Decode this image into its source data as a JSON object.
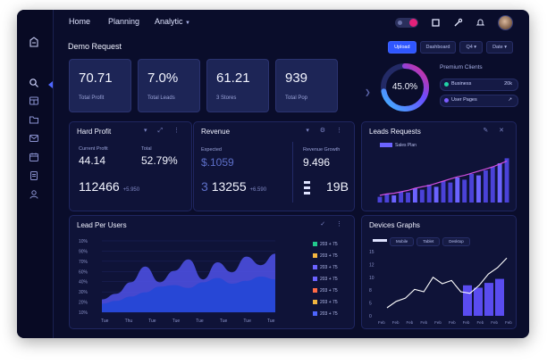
{
  "nav": {
    "items": [
      "Home",
      "Planning",
      "Analytic"
    ]
  },
  "page": {
    "title": "Demo Request"
  },
  "filters": [
    "Upload",
    "Dashboard",
    "Q4 ▾",
    "Date ▾"
  ],
  "kpis": [
    {
      "value": "70.71",
      "label": "Total Profit"
    },
    {
      "value": "7.0%",
      "label": "Total Leads"
    },
    {
      "value": "61.21",
      "label": "3 Stores"
    },
    {
      "value": "939",
      "label": "Total Pop"
    }
  ],
  "premium": {
    "title": "Premium Clients",
    "ring_text": "45.0%",
    "ring_fraction": 0.72,
    "rows": [
      {
        "label": "Business",
        "value": "20k",
        "color": "#22d3a6"
      },
      {
        "label": "User Pages",
        "value": "↗",
        "color": "#7b5cff"
      }
    ]
  },
  "hard_profit": {
    "title": "Hard Profit",
    "stats": [
      {
        "label": "Current Profit",
        "value": "44.14"
      },
      {
        "label": "Total",
        "value": "52.79%"
      }
    ],
    "total": "112466",
    "total_sub": "+5.950"
  },
  "revenue": {
    "title": "Revenue",
    "stats": [
      {
        "label": "Expected",
        "value": "$.1059"
      },
      {
        "label": "Revenue Growth",
        "value": "9.496"
      }
    ],
    "bottom_prefix": "3",
    "bottom_value": "13255",
    "bottom_sub": "+6.590",
    "right_value": "19B"
  },
  "lead_requests": {
    "title": "Leads Requests",
    "legend_label": "Sales Plan",
    "chart_data": {
      "type": "bar",
      "values": [
        8,
        12,
        10,
        15,
        14,
        20,
        18,
        25,
        22,
        30,
        28,
        35,
        32,
        40,
        38,
        45,
        50,
        55,
        62
      ],
      "trend": [
        10,
        12,
        13,
        15,
        17,
        20,
        22,
        24,
        27,
        30,
        33,
        36,
        38,
        41,
        44,
        47,
        50,
        54,
        58
      ],
      "ylim": [
        0,
        70
      ]
    }
  },
  "lead_per_user": {
    "title": "Lead Per Users",
    "chart_data": {
      "type": "area",
      "x_labels": [
        "Tue",
        "Thu",
        "Tue",
        "Tue",
        "Tue",
        "Tue",
        "Tue",
        "Tue"
      ],
      "y_labels": [
        "10%",
        "90%",
        "70%",
        "60%",
        "40%",
        "30%",
        "20%",
        "10%"
      ],
      "series": [
        {
          "values": [
            18,
            26,
            42,
            64,
            42,
            58,
            74,
            46,
            70,
            56,
            78,
            66,
            82
          ]
        },
        {
          "values": [
            12,
            16,
            22,
            28,
            36,
            38,
            34,
            42,
            48,
            40,
            44,
            50,
            46
          ]
        }
      ],
      "ylim": [
        0,
        100
      ]
    },
    "legend": [
      {
        "label": "203 + 75",
        "color": "#22c98d"
      },
      {
        "label": "203 + 75",
        "color": "#f5b640"
      },
      {
        "label": "203 + 75",
        "color": "#6b63ff"
      },
      {
        "label": "203 + 75",
        "color": "#6b63ff"
      },
      {
        "label": "203 + 75",
        "color": "#ff6a45"
      },
      {
        "label": "203 + 75",
        "color": "#f0b440"
      },
      {
        "label": "203 + 75",
        "color": "#4e66ff"
      }
    ]
  },
  "device_graphs": {
    "title": "Devices Graphs",
    "legend": [
      "Mobile",
      "Tablet",
      "Desktop"
    ],
    "chart_data": {
      "type": "bar",
      "y_labels": [
        "15",
        "12",
        "10",
        "8",
        "5",
        "0"
      ],
      "x_labels": [
        "Feb",
        "Feb",
        "Feb",
        "Feb",
        "Feb",
        "Feb",
        "Feb",
        "Feb",
        "Feb",
        "Feb"
      ],
      "line": [
        10,
        18,
        22,
        33,
        30,
        48,
        40,
        44,
        30,
        28,
        38,
        52,
        60,
        72
      ],
      "bars": [
        38,
        35,
        41,
        46
      ],
      "ylim": [
        0,
        80
      ]
    }
  }
}
